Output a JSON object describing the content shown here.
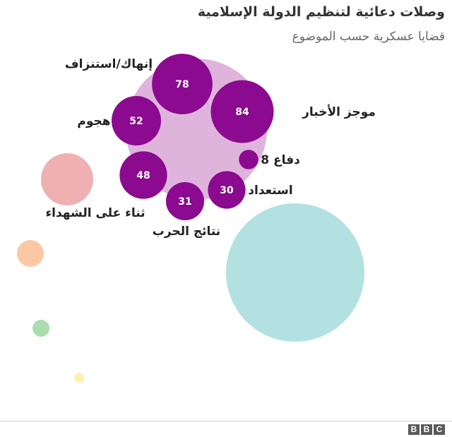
{
  "header": {
    "title": "وصلات دعائية لتنظيم الدولة الإسلامية",
    "subtitle": "قضايا عسكرية حسب الموضوع"
  },
  "footer": {
    "logo": [
      "B",
      "B",
      "C"
    ]
  },
  "colors": {
    "military_group": "#dfb4dc",
    "military_topics": "#8b0a8f",
    "martyrs": "#efb0b2",
    "orange_small": "#fcc8a4",
    "green_small": "#a9ddb0",
    "yellow_small": "#fcf1b0",
    "teal_large": "#b3e1e2"
  },
  "chart_data": {
    "type": "bubble",
    "title": "وصلات دعائية لتنظيم الدولة الإسلامية",
    "subtitle": "قضايا عسكرية حسب الموضوع",
    "group": "قضايا عسكرية",
    "series": [
      {
        "label": "موجز الأخبار",
        "value": 84
      },
      {
        "label": "إنهاك/استنزاف",
        "value": 78
      },
      {
        "label": "هجوم",
        "value": 52
      },
      {
        "label": "ثناء الشهداء",
        "value": 48
      },
      {
        "label": "نتائج الحرب",
        "value": 31
      },
      {
        "label": "استعداد",
        "value": 30
      },
      {
        "label": "دفاع",
        "value": 8
      }
    ],
    "other_bubbles": [
      {
        "label": "ثناء على الشهداء",
        "color": "martyrs"
      },
      {
        "label": "",
        "color": "teal_large"
      },
      {
        "label": "",
        "color": "orange_small"
      },
      {
        "label": "",
        "color": "green_small"
      },
      {
        "label": "",
        "color": "yellow_small"
      }
    ]
  }
}
